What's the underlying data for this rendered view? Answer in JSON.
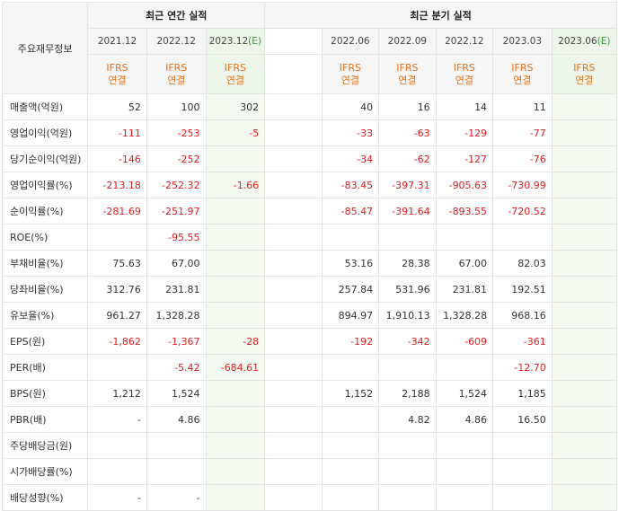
{
  "header": {
    "row_label": "주요재무정보",
    "annual_title": "최근 연간 실적",
    "quarter_title": "최근 분기 실적",
    "annual_periods": [
      {
        "label": "2021.12",
        "est": ""
      },
      {
        "label": "2022.12",
        "est": ""
      },
      {
        "label": "2023.12",
        "est": "(E)"
      }
    ],
    "quarter_periods": [
      {
        "label": "2022.06",
        "est": ""
      },
      {
        "label": "2022.09",
        "est": ""
      },
      {
        "label": "2022.12",
        "est": ""
      },
      {
        "label": "2023.03",
        "est": ""
      },
      {
        "label": "2023.06",
        "est": "(E)"
      }
    ],
    "ifrs_line1": "IFRS",
    "ifrs_line2": "연결"
  },
  "rows": [
    {
      "label": "매출액(억원)",
      "annual": [
        "52",
        "100",
        "302"
      ],
      "quarter": [
        "40",
        "16",
        "14",
        "11",
        ""
      ]
    },
    {
      "label": "영업이익(억원)",
      "annual": [
        "-111",
        "-253",
        "-5"
      ],
      "quarter": [
        "-33",
        "-63",
        "-129",
        "-77",
        ""
      ]
    },
    {
      "label": "당기순이익(억원)",
      "annual": [
        "-146",
        "-252",
        ""
      ],
      "quarter": [
        "-34",
        "-62",
        "-127",
        "-76",
        ""
      ]
    },
    {
      "label": "영업이익률(%)",
      "annual": [
        "-213.18",
        "-252.32",
        "-1.66"
      ],
      "quarter": [
        "-83.45",
        "-397.31",
        "-905.63",
        "-730.99",
        ""
      ]
    },
    {
      "label": "순이익률(%)",
      "annual": [
        "-281.69",
        "-251.97",
        ""
      ],
      "quarter": [
        "-85.47",
        "-391.64",
        "-893.55",
        "-720.52",
        ""
      ]
    },
    {
      "label": "ROE(%)",
      "annual": [
        "",
        "-95.55",
        ""
      ],
      "quarter": [
        "",
        "",
        "",
        "",
        ""
      ]
    },
    {
      "label": "부채비율(%)",
      "annual": [
        "75.63",
        "67.00",
        ""
      ],
      "quarter": [
        "53.16",
        "28.38",
        "67.00",
        "82.03",
        ""
      ]
    },
    {
      "label": "당좌비율(%)",
      "annual": [
        "312.76",
        "231.81",
        ""
      ],
      "quarter": [
        "257.84",
        "531.96",
        "231.81",
        "192.51",
        ""
      ]
    },
    {
      "label": "유보율(%)",
      "annual": [
        "961.27",
        "1,328.28",
        ""
      ],
      "quarter": [
        "894.97",
        "1,910.13",
        "1,328.28",
        "968.16",
        ""
      ]
    },
    {
      "label": "EPS(원)",
      "annual": [
        "-1,862",
        "-1,367",
        "-28"
      ],
      "quarter": [
        "-192",
        "-342",
        "-609",
        "-361",
        ""
      ]
    },
    {
      "label": "PER(배)",
      "annual": [
        "",
        "-5.42",
        "-684.61"
      ],
      "quarter": [
        "",
        "",
        "",
        "-12.70",
        ""
      ]
    },
    {
      "label": "BPS(원)",
      "annual": [
        "1,212",
        "1,524",
        ""
      ],
      "quarter": [
        "1,152",
        "2,188",
        "1,524",
        "1,185",
        ""
      ]
    },
    {
      "label": "PBR(배)",
      "annual": [
        "-",
        "4.86",
        ""
      ],
      "quarter": [
        "",
        "4.82",
        "4.86",
        "16.50",
        ""
      ]
    },
    {
      "label": "주당배당금(원)",
      "annual": [
        "",
        "",
        ""
      ],
      "quarter": [
        "",
        "",
        "",
        "",
        ""
      ]
    },
    {
      "label": "시가배당률(%)",
      "annual": [
        "",
        "",
        ""
      ],
      "quarter": [
        "",
        "",
        "",
        "",
        ""
      ]
    },
    {
      "label": "배당성향(%)",
      "annual": [
        "-",
        "-",
        ""
      ],
      "quarter": [
        "",
        "",
        "",
        "",
        ""
      ]
    }
  ]
}
